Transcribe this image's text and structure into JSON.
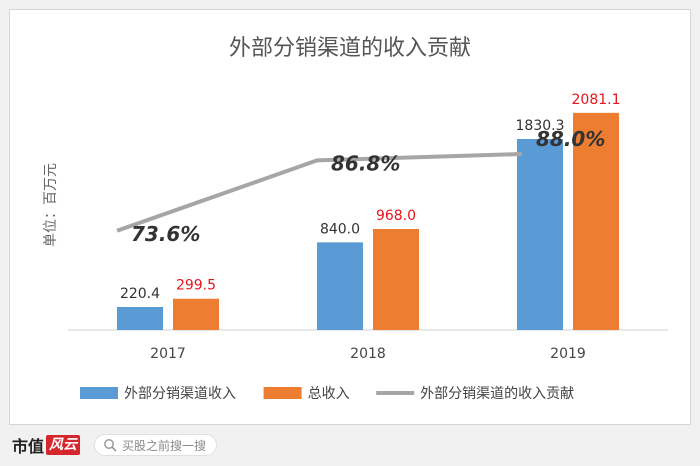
{
  "chart_data": {
    "type": "bar",
    "title": "外部分销渠道的收入贡献",
    "ylabel": "单位：百万元",
    "categories": [
      "2017",
      "2018",
      "2019"
    ],
    "series": [
      {
        "name": "外部分销渠道收入",
        "type": "bar",
        "color": "#5b9bd5",
        "values": [
          220.4,
          840.0,
          1830.3
        ],
        "labels": [
          "220.4",
          "840.0",
          "1830.3"
        ],
        "label_color": "#333333"
      },
      {
        "name": "总收入",
        "type": "bar",
        "color": "#ed7d31",
        "values": [
          299.5,
          968.0,
          2081.1
        ],
        "labels": [
          "299.5",
          "968.0",
          "2081.1"
        ],
        "label_color": "#e8141b"
      },
      {
        "name": "外部分销渠道的收入贡献",
        "type": "line",
        "color": "#a6a6a6",
        "values": [
          73.6,
          86.8,
          88.0
        ],
        "labels": [
          "73.6%",
          "86.8%",
          "88.0%"
        ],
        "label_color": "#333333"
      }
    ],
    "bar_ylim": [
      0,
      2300
    ],
    "line_ylim": [
      55,
      100
    ],
    "legend_position": "bottom",
    "grid": false
  },
  "footer": {
    "brand": "市值",
    "brand_mark": "风云",
    "search_placeholder": "买股之前搜一搜"
  }
}
